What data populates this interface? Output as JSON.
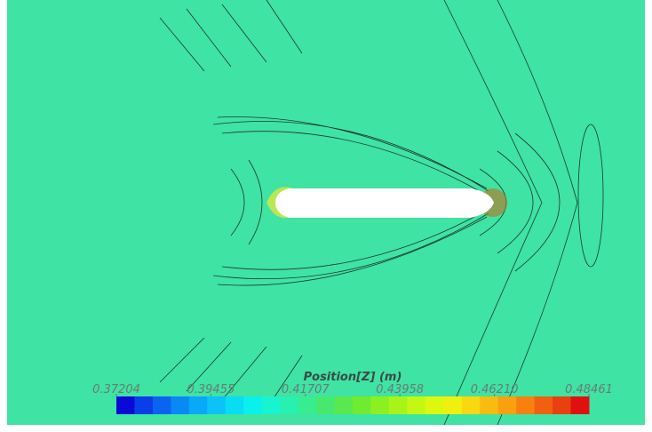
{
  "chart_data": {
    "type": "colorbar",
    "title": "Position[Z] (m)",
    "xlim": [
      0.37204,
      0.48461
    ],
    "xticks": [
      0.37204,
      0.39455,
      0.41707,
      0.43958,
      {
        "value": 0.4621,
        "label": "0.46210"
      },
      0.48461
    ],
    "colormap": [
      "#0a0ad8",
      "#0a3ee8",
      "#0a64f0",
      "#0a88f4",
      "#0aa8f8",
      "#0ac4f8",
      "#0adcf4",
      "#0af0ec",
      "#18f4d0",
      "#28f0b0",
      "#38ec90",
      "#48e870",
      "#5ae850",
      "#70ec30",
      "#8cf020",
      "#a8f418",
      "#c4f814",
      "#dcf810",
      "#f0f010",
      "#f8d810",
      "#f8bc10",
      "#f8a010",
      "#f88010",
      "#f06010",
      "#e84010",
      "#e01010"
    ]
  }
}
